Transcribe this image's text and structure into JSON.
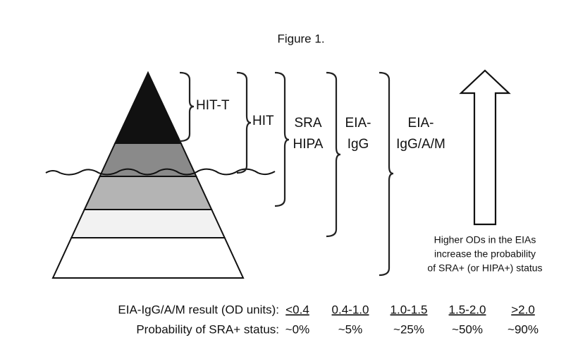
{
  "title": "Figure 1.",
  "levels": [
    {
      "lines": [
        "HIT-T"
      ]
    },
    {
      "lines": [
        "HIT"
      ]
    },
    {
      "lines": [
        "SRA",
        "HIPA"
      ]
    },
    {
      "lines": [
        "EIA-",
        "IgG"
      ]
    },
    {
      "lines": [
        "EIA-",
        "IgG/A/M"
      ]
    }
  ],
  "arrow_note": [
    "Higher ODs in the EIAs",
    "increase the probability",
    "of SRA+ (or HIPA+) status"
  ],
  "table": {
    "rows": [
      [
        "EIA-IgG/A/M result (OD units):",
        "<0.4",
        "0.4-1.0",
        "1.0-1.5",
        "1.5-2.0",
        ">2.0"
      ],
      [
        "Probability of SRA+ status:",
        "~0%",
        "~5%",
        "~25%",
        "~50%",
        "~90%"
      ]
    ]
  }
}
